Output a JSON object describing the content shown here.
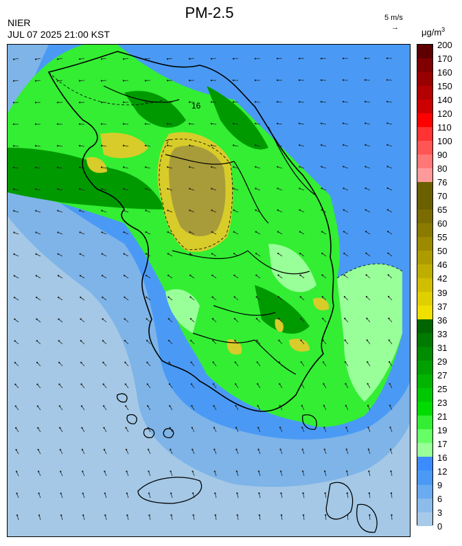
{
  "header": {
    "title": "PM-2.5",
    "agency": "NIER",
    "timestamp": "JUL 07 2025 21:00 KST",
    "wind_reference": "5 m/s",
    "wind_arrow": "→",
    "unit": "μg/m",
    "unit_sup": "3"
  },
  "legend": {
    "levels": [
      {
        "label": "200",
        "color": "#5e0000"
      },
      {
        "label": "170",
        "color": "#800000"
      },
      {
        "label": "160",
        "color": "#990000"
      },
      {
        "label": "150",
        "color": "#b30000"
      },
      {
        "label": "140",
        "color": "#cc0000"
      },
      {
        "label": "120",
        "color": "#ff0000"
      },
      {
        "label": "110",
        "color": "#ff3333"
      },
      {
        "label": "100",
        "color": "#ff5555"
      },
      {
        "label": "90",
        "color": "#ff7777"
      },
      {
        "label": "80",
        "color": "#ff9a9a"
      },
      {
        "label": "76",
        "color": "#6b6000"
      },
      {
        "label": "70",
        "color": "#6b6000"
      },
      {
        "label": "65",
        "color": "#7a6c00"
      },
      {
        "label": "60",
        "color": "#8a7a00"
      },
      {
        "label": "55",
        "color": "#9c8b00"
      },
      {
        "label": "50",
        "color": "#ad9c00"
      },
      {
        "label": "46",
        "color": "#bfad00"
      },
      {
        "label": "42",
        "color": "#d1be00"
      },
      {
        "label": "39",
        "color": "#e0d000"
      },
      {
        "label": "37",
        "color": "#f0e000"
      },
      {
        "label": "36",
        "color": "#006400"
      },
      {
        "label": "33",
        "color": "#007a00"
      },
      {
        "label": "31",
        "color": "#008c00"
      },
      {
        "label": "29",
        "color": "#00a000"
      },
      {
        "label": "27",
        "color": "#00b400"
      },
      {
        "label": "25",
        "color": "#00c800"
      },
      {
        "label": "23",
        "color": "#00dc00"
      },
      {
        "label": "21",
        "color": "#33ee33"
      },
      {
        "label": "19",
        "color": "#66ff66"
      },
      {
        "label": "17",
        "color": "#99ff99"
      },
      {
        "label": "16",
        "color": "#3c8cff"
      },
      {
        "label": "12",
        "color": "#4a9af5"
      },
      {
        "label": "9",
        "color": "#6aaaf0"
      },
      {
        "label": "6",
        "color": "#8cbcec"
      },
      {
        "label": "3",
        "color": "#a6cae8"
      },
      {
        "label": "0",
        "color": "#a6cae8"
      }
    ]
  },
  "map": {
    "contour_label": "16",
    "colors": {
      "sea_far": "#a4c8e6",
      "sea_mid": "#7eb4e8",
      "sea_near": "#4a9af5",
      "green_light": "#99ff99",
      "green": "#33ee33",
      "green_mid": "#00c800",
      "green_dark": "#009a00",
      "yellow": "#d8cc2a",
      "olive": "#a89c3a"
    }
  }
}
